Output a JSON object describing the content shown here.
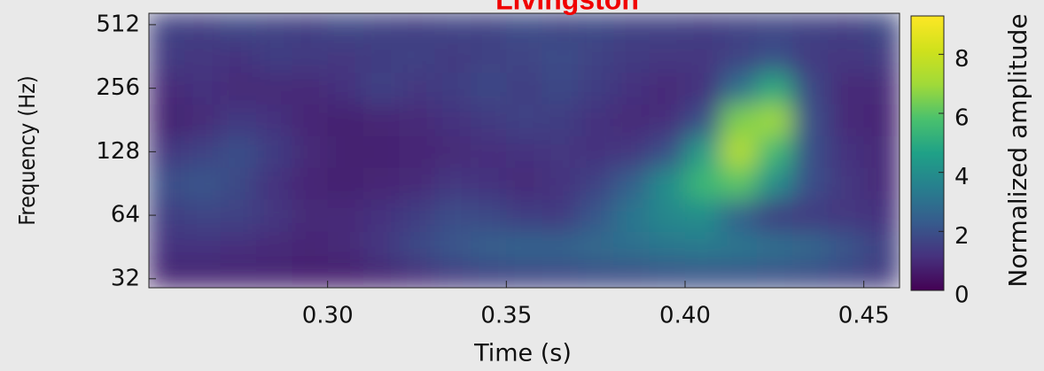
{
  "chart_data": {
    "type": "heatmap",
    "title": "Livingston",
    "x_label": "Time (s)",
    "y_label": "Frequency (Hz)",
    "colorbar_label": "Normalized amplitude",
    "colormap": "viridis",
    "y_log": true,
    "x": [
      0.255,
      0.265,
      0.275,
      0.285,
      0.295,
      0.305,
      0.315,
      0.325,
      0.335,
      0.345,
      0.355,
      0.365,
      0.375,
      0.385,
      0.395,
      0.405,
      0.415,
      0.425,
      0.435,
      0.445,
      0.455
    ],
    "y": [
      32,
      45,
      64,
      91,
      128,
      181,
      256,
      362,
      512
    ],
    "z": [
      [
        0.8,
        0.8,
        0.8,
        0.8,
        0.7,
        0.7,
        0.8,
        1.0,
        1.3,
        1.5,
        1.6,
        1.7,
        1.8,
        1.8,
        1.9,
        2.0,
        2.0,
        1.9,
        1.8,
        1.6,
        1.4
      ],
      [
        1.2,
        1.2,
        1.1,
        1.0,
        0.9,
        1.0,
        1.3,
        1.8,
        2.2,
        2.5,
        2.6,
        2.6,
        2.8,
        3.0,
        3.2,
        3.3,
        3.2,
        3.0,
        2.7,
        2.2,
        1.6
      ],
      [
        1.5,
        1.7,
        1.6,
        1.3,
        1.0,
        1.0,
        1.2,
        1.5,
        1.9,
        1.8,
        1.5,
        1.4,
        2.2,
        3.2,
        3.8,
        4.0,
        2.5,
        1.5,
        1.4,
        1.3,
        1.2
      ],
      [
        2.0,
        2.2,
        1.8,
        1.2,
        0.9,
        0.8,
        0.9,
        1.0,
        1.3,
        1.2,
        1.0,
        1.2,
        1.6,
        2.5,
        4.0,
        5.5,
        6.0,
        4.0,
        2.0,
        1.3,
        1.0
      ],
      [
        1.3,
        1.6,
        2.0,
        1.5,
        1.0,
        0.8,
        0.8,
        0.9,
        1.0,
        1.1,
        1.2,
        1.3,
        1.2,
        1.3,
        2.0,
        4.5,
        7.5,
        5.5,
        2.0,
        1.2,
        1.0
      ],
      [
        0.8,
        1.0,
        1.4,
        1.2,
        0.9,
        0.8,
        0.9,
        1.0,
        1.2,
        1.4,
        1.6,
        1.5,
        1.2,
        1.0,
        1.1,
        2.0,
        6.5,
        7.0,
        2.0,
        1.0,
        0.9
      ],
      [
        1.0,
        1.2,
        1.0,
        1.0,
        1.0,
        1.2,
        1.6,
        1.3,
        1.5,
        1.8,
        1.5,
        1.8,
        1.5,
        1.2,
        1.0,
        1.2,
        3.0,
        5.0,
        1.8,
        1.0,
        1.0
      ],
      [
        1.4,
        1.3,
        1.2,
        1.5,
        1.4,
        1.3,
        1.5,
        1.6,
        1.4,
        1.6,
        1.7,
        1.9,
        1.6,
        1.4,
        1.3,
        1.3,
        1.6,
        2.0,
        1.4,
        1.3,
        1.4
      ],
      [
        1.6,
        1.5,
        1.8,
        1.6,
        1.5,
        1.8,
        1.6,
        1.5,
        1.7,
        1.6,
        1.9,
        1.7,
        1.8,
        1.6,
        1.6,
        1.5,
        1.6,
        1.7,
        1.6,
        1.5,
        1.8
      ]
    ],
    "xlim": [
      0.25,
      0.46
    ],
    "xticks": [
      {
        "value": 0.3,
        "label": "0.30"
      },
      {
        "value": 0.35,
        "label": "0.35"
      },
      {
        "value": 0.4,
        "label": "0.40"
      },
      {
        "value": 0.45,
        "label": "0.45"
      }
    ],
    "ylim": [
      29,
      580
    ],
    "yticks": [
      32,
      64,
      128,
      256,
      512
    ],
    "clim": [
      0,
      9.3
    ],
    "cticks": [
      0,
      2,
      4,
      6,
      8
    ]
  }
}
